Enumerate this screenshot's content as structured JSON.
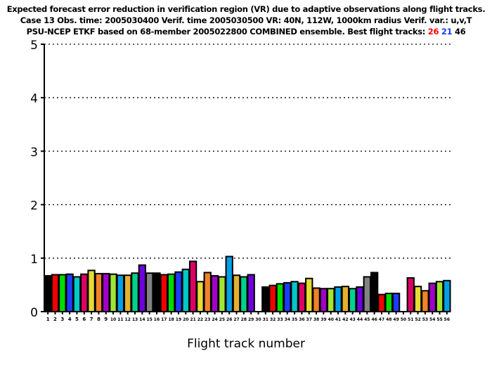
{
  "chart_data": {
    "type": "bar",
    "title_lines": [
      "Expected forecast error reduction in verification region (VR) due to adaptive observations along flight tracks.",
      "Case 13   Obs. time: 2005030400   Verif. time 2005030500   VR: 40N, 112W, 1000km radius   Verif. var.: u,v,T",
      "PSU-NCEP ETKF based on 68-member 2005022800 COMBINED ensemble.  Best flight tracks: "
    ],
    "best_tracks": [
      {
        "label": "26",
        "color": "#ff0000"
      },
      {
        "label": "21",
        "color": "#1e3cff"
      },
      {
        "label": "46",
        "color": "#000000"
      }
    ],
    "xlabel": "Flight track number",
    "ylabel": "",
    "ylim": [
      0,
      5
    ],
    "yticks": [
      "0",
      "1",
      "2",
      "3",
      "4",
      "5"
    ],
    "grid": "horizontal dotted",
    "categories": [
      "1",
      "2",
      "3",
      "4",
      "5",
      "6",
      "7",
      "8",
      "9",
      "10",
      "11",
      "12",
      "13",
      "14",
      "15",
      "16",
      "17",
      "18",
      "19",
      "20",
      "21",
      "22",
      "23",
      "24",
      "25",
      "26",
      "27",
      "28",
      "29",
      "30",
      "31",
      "32",
      "33",
      "34",
      "35",
      "36",
      "37",
      "38",
      "39",
      "40",
      "41",
      "42",
      "43",
      "44",
      "45",
      "46",
      "47",
      "48",
      "49",
      "50",
      "51",
      "52",
      "53",
      "54",
      "55",
      "56"
    ],
    "values": [
      0.67,
      0.69,
      0.69,
      0.7,
      0.65,
      0.7,
      0.77,
      0.71,
      0.71,
      0.7,
      0.68,
      0.68,
      0.72,
      0.87,
      0.72,
      0.72,
      0.69,
      0.7,
      0.74,
      0.79,
      0.94,
      0.56,
      0.73,
      0.67,
      0.65,
      1.03,
      0.68,
      0.65,
      0.69,
      0,
      0.46,
      0.49,
      0.52,
      0.54,
      0.56,
      0.53,
      0.62,
      0.44,
      0.43,
      0.43,
      0.46,
      0.47,
      0.43,
      0.46,
      0.65,
      0.73,
      0.32,
      0.34,
      0.34,
      0,
      0.63,
      0.47,
      0.39,
      0.53,
      0.56,
      0.58
    ],
    "color_cycle": [
      "#000000",
      "#f00000",
      "#00dc00",
      "#1e3cff",
      "#00c8c8",
      "#dc0064",
      "#e6dc32",
      "#f08228",
      "#a000c8",
      "#a0e632",
      "#00a0e6",
      "#e6af2d",
      "#00d28c",
      "#6e00dc",
      "#828282"
    ]
  }
}
